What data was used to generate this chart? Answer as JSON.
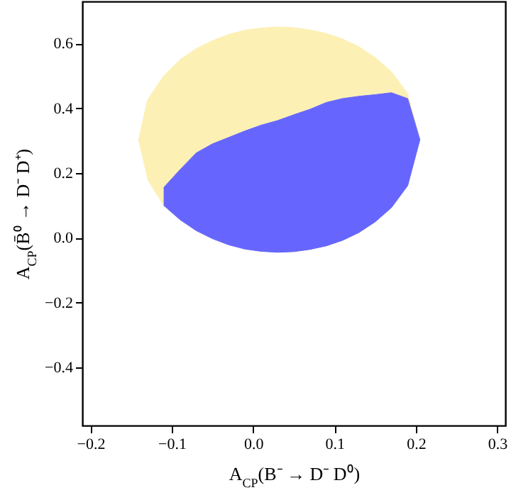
{
  "chart_data": {
    "type": "area",
    "xlabel": "A$_{CP}$(B⁻ → D⁻ D⁰)",
    "ylabel": "A$_{CP}$(B̄⁰ → D⁻ D⁺)",
    "xlim": [
      -0.21,
      0.31
    ],
    "ylim": [
      -0.58,
      0.73
    ],
    "xticks": [
      {
        "value": -0.2,
        "label": "−0.2"
      },
      {
        "value": -0.1,
        "label": "−0.1"
      },
      {
        "value": 0,
        "label": "0.0"
      },
      {
        "value": 0.1,
        "label": "0.1"
      },
      {
        "value": 0.2,
        "label": "0.2"
      },
      {
        "value": 0.3,
        "label": "0.3"
      }
    ],
    "yticks": [
      {
        "value": -0.4,
        "label": "−0.4"
      },
      {
        "value": -0.2,
        "label": "−0.2"
      },
      {
        "value": 0,
        "label": "0.0"
      },
      {
        "value": 0.2,
        "label": "0.2"
      },
      {
        "value": 0.4,
        "label": "0.4"
      },
      {
        "value": 0.6,
        "label": "0.6"
      }
    ],
    "grid": false,
    "series": [
      {
        "color": "#fdf0b4",
        "x": [
          -0.141,
          -0.13,
          -0.11,
          -0.09,
          -0.07,
          -0.05,
          -0.03,
          -0.01,
          0.01,
          0.03,
          0.05,
          0.07,
          0.09,
          0.11,
          0.13,
          0.15,
          0.17,
          0.19,
          0.205,
          0.19,
          0.17,
          0.15,
          0.13,
          0.11,
          0.09,
          0.07,
          0.05,
          0.03,
          0.01,
          -0.01,
          -0.03,
          -0.05,
          -0.07,
          -0.09,
          -0.11,
          -0.13
        ],
        "values": [
          0.3,
          0.425,
          0.5,
          0.55,
          0.584,
          0.609,
          0.628,
          0.641,
          0.648,
          0.651,
          0.649,
          0.642,
          0.631,
          0.614,
          0.59,
          0.557,
          0.513,
          0.445,
          0.303,
          0.161,
          0.093,
          0.049,
          0.016,
          -0.008,
          -0.025,
          -0.036,
          -0.043,
          -0.045,
          -0.042,
          -0.035,
          -0.022,
          -0.003,
          0.022,
          0.056,
          0.1,
          0.181
        ]
      },
      {
        "color": "#6666ff",
        "x": [
          -0.11,
          -0.09,
          -0.07,
          -0.05,
          -0.03,
          -0.01,
          0.01,
          0.03,
          0.05,
          0.07,
          0.09,
          0.11,
          0.13,
          0.15,
          0.17,
          0.19,
          0.205,
          0.19,
          0.17,
          0.15,
          0.13,
          0.11,
          0.09,
          0.07,
          0.05,
          0.03,
          0.01,
          -0.01,
          -0.03,
          -0.05,
          -0.07,
          -0.09,
          -0.11
        ],
        "values": [
          0.155,
          0.21,
          0.262,
          0.29,
          0.31,
          0.33,
          0.348,
          0.362,
          0.38,
          0.397,
          0.418,
          0.43,
          0.437,
          0.442,
          0.448,
          0.43,
          0.303,
          0.161,
          0.093,
          0.049,
          0.016,
          -0.008,
          -0.025,
          -0.036,
          -0.043,
          -0.045,
          -0.042,
          -0.035,
          -0.022,
          -0.003,
          0.022,
          0.056,
          0.1
        ]
      }
    ]
  }
}
